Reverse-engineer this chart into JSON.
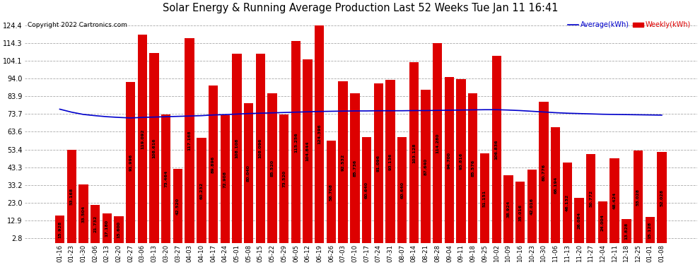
{
  "title": "Solar Energy & Running Average Production Last 52 Weeks Tue Jan 11 16:41",
  "copyright": "Copyright 2022 Cartronics.com",
  "categories": [
    "01-16",
    "01-23",
    "01-30",
    "02-06",
    "02-13",
    "02-20",
    "02-27",
    "03-06",
    "03-13",
    "03-20",
    "03-27",
    "04-03",
    "04-10",
    "04-17",
    "04-24",
    "05-01",
    "05-08",
    "05-15",
    "05-22",
    "05-29",
    "06-05",
    "06-12",
    "06-19",
    "06-26",
    "07-03",
    "07-10",
    "07-17",
    "07-24",
    "07-31",
    "08-07",
    "08-14",
    "08-21",
    "08-28",
    "09-04",
    "09-11",
    "09-18",
    "09-25",
    "10-02",
    "10-09",
    "10-16",
    "10-23",
    "10-30",
    "11-06",
    "11-13",
    "11-20",
    "11-27",
    "12-04",
    "12-11",
    "12-18",
    "12-25",
    "01-01",
    "01-08"
  ],
  "weekly_values": [
    15.928,
    53.168,
    33.504,
    21.732,
    17.18,
    15.6,
    91.996,
    119.092,
    108.616,
    73.464,
    42.52,
    117.168,
    60.232,
    89.896,
    72.908,
    108.108,
    80.04,
    108.096,
    85.52,
    73.52,
    115.256,
    104.844,
    124.396,
    58.708,
    92.532,
    85.736,
    60.64,
    91.096,
    93.136,
    60.64,
    103.128,
    87.64,
    114.28,
    94.7,
    93.816,
    85.576,
    51.151,
    106.836,
    38.924,
    35.016,
    42.016,
    80.776,
    66.194,
    46.132,
    26.084,
    50.772,
    24.004,
    48.424,
    13.828,
    53.028,
    15.128,
    52.028
  ],
  "avg_values": [
    76.5,
    74.8,
    73.5,
    72.8,
    72.2,
    71.8,
    71.5,
    71.8,
    72.0,
    72.2,
    72.4,
    72.6,
    72.8,
    73.2,
    73.4,
    73.7,
    74.0,
    74.2,
    74.4,
    74.6,
    74.8,
    75.0,
    75.2,
    75.3,
    75.4,
    75.5,
    75.5,
    75.6,
    75.6,
    75.6,
    75.7,
    75.7,
    75.8,
    75.9,
    76.0,
    76.1,
    76.2,
    76.2,
    76.0,
    75.7,
    75.3,
    74.9,
    74.5,
    74.2,
    74.0,
    73.8,
    73.6,
    73.5,
    73.4,
    73.3,
    73.2,
    73.1
  ],
  "bar_color": "#dd0000",
  "line_color": "#0000cc",
  "bg_color": "#ffffff",
  "grid_color": "#aaaaaa",
  "yticks": [
    2.8,
    12.9,
    23.0,
    33.2,
    43.3,
    53.4,
    63.6,
    73.7,
    83.9,
    94.0,
    104.1,
    114.3,
    124.4
  ],
  "ymin": 0,
  "ymax": 130
}
